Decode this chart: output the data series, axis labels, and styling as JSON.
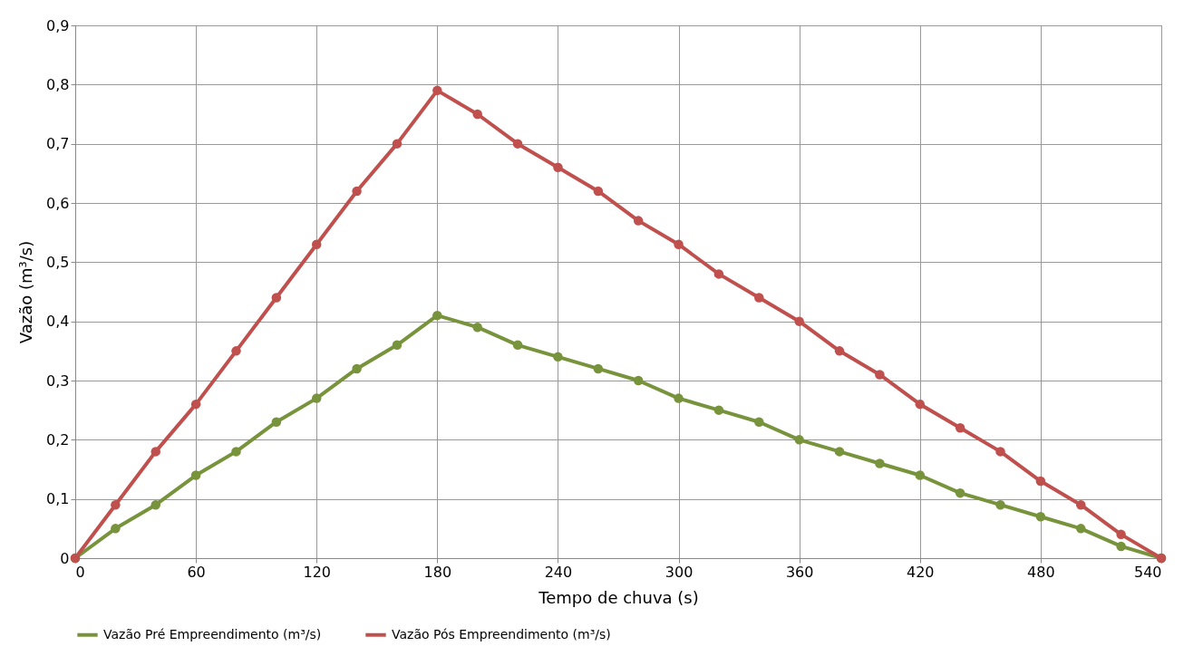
{
  "chart_data": {
    "type": "line",
    "xlabel": "Tempo de chuva (s)",
    "ylabel": "Vazão (m³/s)",
    "x": [
      0,
      20,
      40,
      60,
      80,
      100,
      120,
      140,
      160,
      180,
      200,
      220,
      240,
      260,
      280,
      300,
      320,
      340,
      360,
      380,
      400,
      420,
      440,
      460,
      480,
      500,
      520,
      540
    ],
    "series": [
      {
        "name": "Vazão Pré Empreendimento (m³/s)",
        "color": "#77933c",
        "values": [
          0,
          0.05,
          0.09,
          0.14,
          0.18,
          0.23,
          0.27,
          0.32,
          0.36,
          0.41,
          0.39,
          0.36,
          0.34,
          0.32,
          0.3,
          0.27,
          0.25,
          0.23,
          0.2,
          0.18,
          0.16,
          0.14,
          0.11,
          0.09,
          0.07,
          0.05,
          0.02,
          0
        ]
      },
      {
        "name": "Vazão Pós Empreendimento (m³/s)",
        "color": "#c0504d",
        "values": [
          0,
          0.09,
          0.18,
          0.26,
          0.35,
          0.44,
          0.53,
          0.62,
          0.7,
          0.79,
          0.75,
          0.7,
          0.66,
          0.62,
          0.57,
          0.53,
          0.48,
          0.44,
          0.4,
          0.35,
          0.31,
          0.26,
          0.22,
          0.18,
          0.13,
          0.09,
          0.04,
          0
        ]
      }
    ],
    "xlim": [
      0,
      540
    ],
    "xticks": [
      0,
      60,
      120,
      180,
      240,
      300,
      360,
      420,
      480,
      540
    ],
    "ylim": [
      0,
      0.9
    ],
    "yticks": [
      0,
      {
        "value": 0.1,
        "label": "0,1"
      },
      {
        "value": 0.2,
        "label": "0,2"
      },
      {
        "value": 0.3,
        "label": "0,3"
      },
      {
        "value": 0.4,
        "label": "0,4"
      },
      {
        "value": 0.5,
        "label": "0,5"
      },
      {
        "value": 0.6,
        "label": "0,6"
      },
      {
        "value": 0.7,
        "label": "0,7"
      },
      {
        "value": 0.8,
        "label": "0,8"
      },
      {
        "value": 0.9,
        "label": "0,9"
      }
    ],
    "grid": true,
    "legend": "bottom",
    "marker": "circle",
    "line_style": "solid"
  }
}
